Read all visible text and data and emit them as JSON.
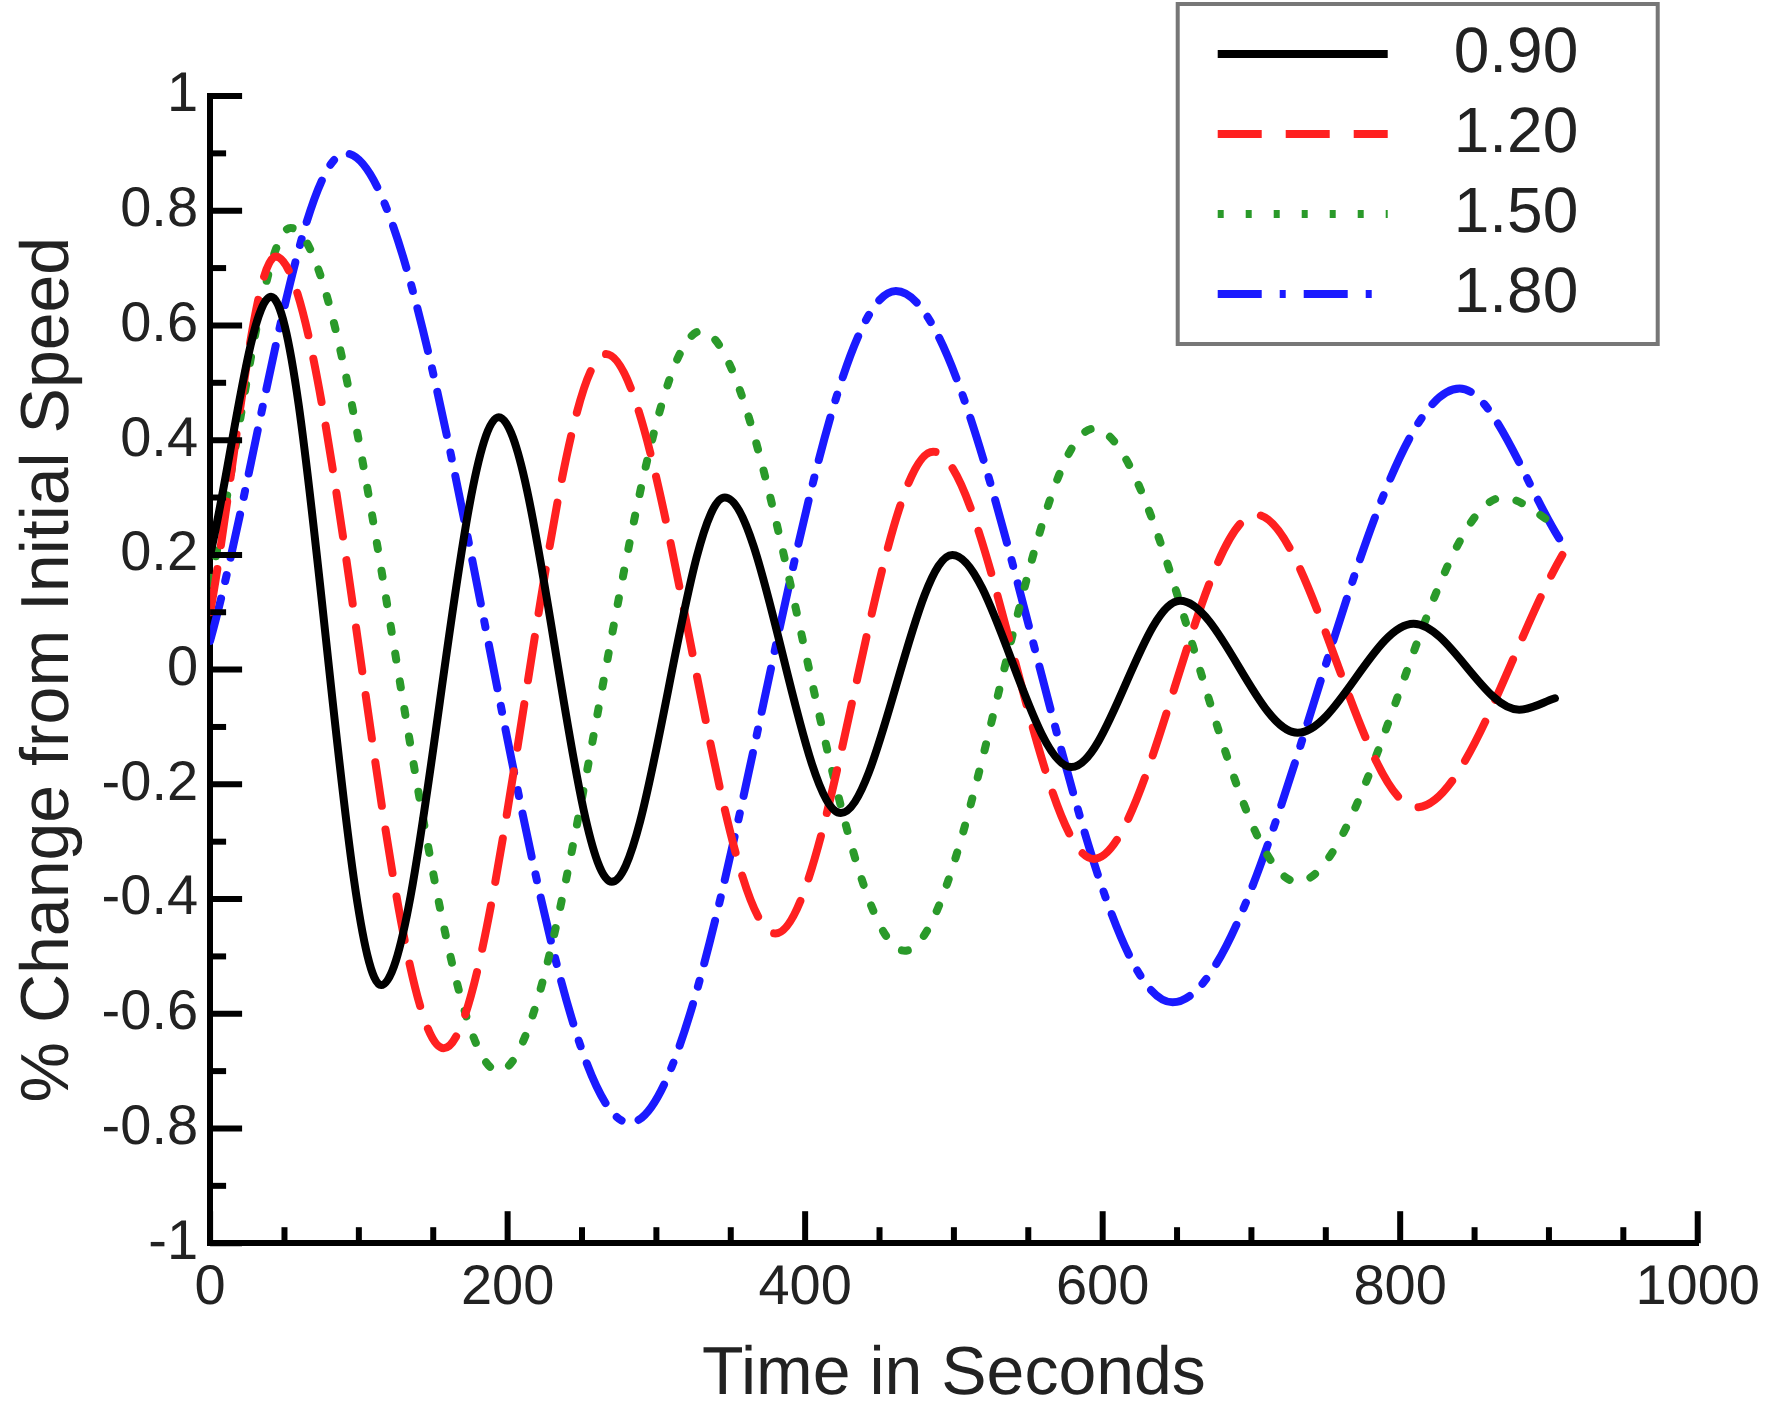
{
  "chart_data": {
    "type": "line",
    "xlabel": "Time in Seconds",
    "ylabel": "% Change from Initial Speed",
    "xlim": [
      0,
      1000
    ],
    "ylim": [
      -1,
      1
    ],
    "xticks": [
      0,
      {
        "value": 50,
        "label": null
      },
      {
        "value": 100,
        "label": null
      },
      {
        "value": 150,
        "label": null
      },
      200,
      {
        "value": 250,
        "label": null
      },
      {
        "value": 300,
        "label": null
      },
      {
        "value": 350,
        "label": null
      },
      400,
      {
        "value": 450,
        "label": null
      },
      {
        "value": 500,
        "label": null
      },
      {
        "value": 550,
        "label": null
      },
      600,
      {
        "value": 650,
        "label": null
      },
      {
        "value": 700,
        "label": null
      },
      {
        "value": 750,
        "label": null
      },
      800,
      {
        "value": 850,
        "label": null
      },
      {
        "value": 900,
        "label": null
      },
      {
        "value": 950,
        "label": null
      },
      1000
    ],
    "yticks": [
      -1,
      {
        "value": -0.9,
        "label": null
      },
      -0.8,
      {
        "value": -0.7,
        "label": null
      },
      -0.6,
      {
        "value": -0.5,
        "label": null
      },
      -0.4,
      {
        "value": -0.3,
        "label": null
      },
      -0.2,
      {
        "value": -0.1,
        "label": null
      },
      0,
      {
        "value": 0.1,
        "label": null
      },
      0.2,
      {
        "value": 0.3,
        "label": null
      },
      0.4,
      {
        "value": 0.5,
        "label": null
      },
      0.6,
      {
        "value": 0.7,
        "label": null
      },
      0.8,
      {
        "value": 0.9,
        "label": null
      },
      1
    ],
    "grid": false,
    "legend": "top right",
    "marker": "none",
    "series": [
      {
        "name": "0.90",
        "color": "#000000",
        "line_style": "solid",
        "x": [
          0,
          41,
          115,
          194,
          270,
          346,
          424,
          499,
          579,
          652,
          731,
          809,
          880,
          904
        ],
        "values": [
          0.2,
          0.65,
          -0.55,
          0.44,
          -0.37,
          0.3,
          -0.25,
          0.2,
          -0.17,
          0.12,
          -0.11,
          0.08,
          -0.07,
          -0.05
        ]
      },
      {
        "name": "1.20",
        "color": "#ff2020",
        "line_style": "dashed",
        "x": [
          0,
          44,
          157,
          266,
          380,
          486,
          594,
          703,
          811,
          909
        ],
        "values": [
          0.1,
          0.72,
          -0.66,
          0.55,
          -0.46,
          0.38,
          -0.33,
          0.27,
          -0.24,
          0.2
        ]
      },
      {
        "name": "1.50",
        "color": "#2a9a2a",
        "line_style": "dotted",
        "x": [
          0,
          54,
          194,
          330,
          467,
          594,
          731,
          869,
          906
        ],
        "values": [
          0.15,
          0.77,
          -0.7,
          0.59,
          -0.49,
          0.42,
          -0.37,
          0.3,
          0.25
        ]
      },
      {
        "name": "1.80",
        "color": "#1a1aff",
        "line_style": "dashdot",
        "x": [
          0,
          91,
          282,
          461,
          647,
          840,
          909
        ],
        "values": [
          0.05,
          0.9,
          -0.79,
          0.66,
          -0.58,
          0.49,
          0.22
        ]
      }
    ]
  }
}
